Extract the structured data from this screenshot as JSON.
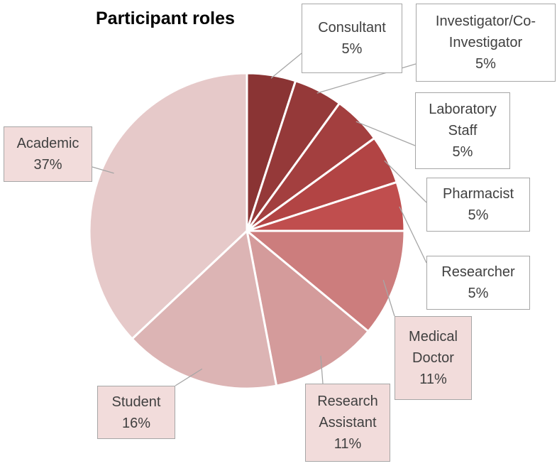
{
  "chart_data": {
    "type": "pie",
    "title": "Participant roles",
    "categories": [
      "Consultant",
      "Investigator/Co-Investigator",
      "Laboratory Staff",
      "Pharmacist",
      "Researcher",
      "Medical Doctor",
      "Research Assistant",
      "Student",
      "Academic"
    ],
    "values": [
      5,
      5,
      5,
      5,
      5,
      11,
      11,
      16,
      37
    ],
    "value_labels": [
      "5%",
      "5%",
      "5%",
      "5%",
      "5%",
      "11%",
      "11%",
      "16%",
      "37%"
    ],
    "colors": [
      "#8a3434",
      "#953939",
      "#a33f3f",
      "#b24444",
      "#c04e4e",
      "#cc7d7d",
      "#d49b9b",
      "#dcb4b4",
      "#e6c9c9"
    ]
  }
}
